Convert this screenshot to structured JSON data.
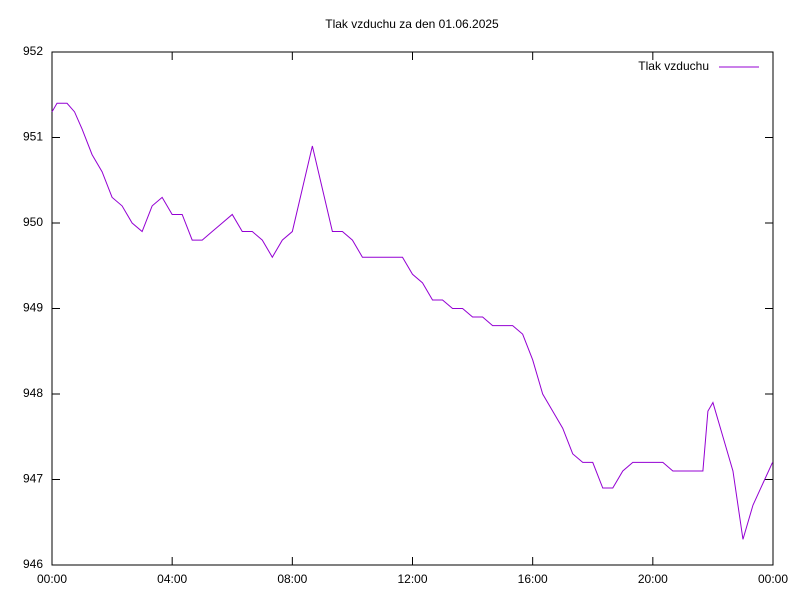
{
  "chart_data": {
    "type": "line",
    "title": "Tlak vzduchu za den 01.06.2025",
    "x": [
      0,
      10,
      30,
      45,
      60,
      80,
      100,
      120,
      140,
      160,
      180,
      200,
      220,
      240,
      260,
      280,
      300,
      320,
      340,
      360,
      380,
      400,
      420,
      440,
      460,
      480,
      500,
      520,
      540,
      560,
      580,
      600,
      620,
      640,
      660,
      680,
      700,
      720,
      740,
      760,
      780,
      800,
      820,
      840,
      860,
      880,
      900,
      920,
      940,
      960,
      980,
      1000,
      1020,
      1040,
      1060,
      1080,
      1100,
      1120,
      1140,
      1160,
      1180,
      1200,
      1220,
      1240,
      1260,
      1280,
      1300,
      1310,
      1320,
      1340,
      1360,
      1380,
      1400,
      1439
    ],
    "series": [
      {
        "name": "Tlak vzduchu",
        "color": "#9400d3",
        "values": [
          951.3,
          951.4,
          951.4,
          951.3,
          951.1,
          950.8,
          950.6,
          950.3,
          950.2,
          950.0,
          949.9,
          950.2,
          950.3,
          950.1,
          950.1,
          949.8,
          949.8,
          949.9,
          950.0,
          950.1,
          949.9,
          949.9,
          949.8,
          949.6,
          949.8,
          949.9,
          950.4,
          950.9,
          950.4,
          949.9,
          949.9,
          949.8,
          949.6,
          949.6,
          949.6,
          949.6,
          949.6,
          949.4,
          949.3,
          949.1,
          949.1,
          949.0,
          949.0,
          948.9,
          948.9,
          948.8,
          948.8,
          948.8,
          948.7,
          948.4,
          948.0,
          947.8,
          947.6,
          947.3,
          947.2,
          947.2,
          946.9,
          946.9,
          947.1,
          947.2,
          947.2,
          947.2,
          947.2,
          947.1,
          947.1,
          947.1,
          947.1,
          947.8,
          947.9,
          947.5,
          947.1,
          946.3,
          946.7,
          947.2
        ]
      }
    ],
    "xlim": [
      0,
      1440
    ],
    "xticks": [
      {
        "value": 0,
        "label": "00:00"
      },
      {
        "value": 240,
        "label": "04:00"
      },
      {
        "value": 480,
        "label": "08:00"
      },
      {
        "value": 720,
        "label": "12:00"
      },
      {
        "value": 960,
        "label": "16:00"
      },
      {
        "value": 1200,
        "label": "20:00"
      },
      {
        "value": 1440,
        "label": "00:00"
      }
    ],
    "ylim": [
      946,
      952
    ],
    "yticks": [
      946,
      947,
      948,
      949,
      950,
      951,
      952
    ],
    "legend": "top-right"
  }
}
